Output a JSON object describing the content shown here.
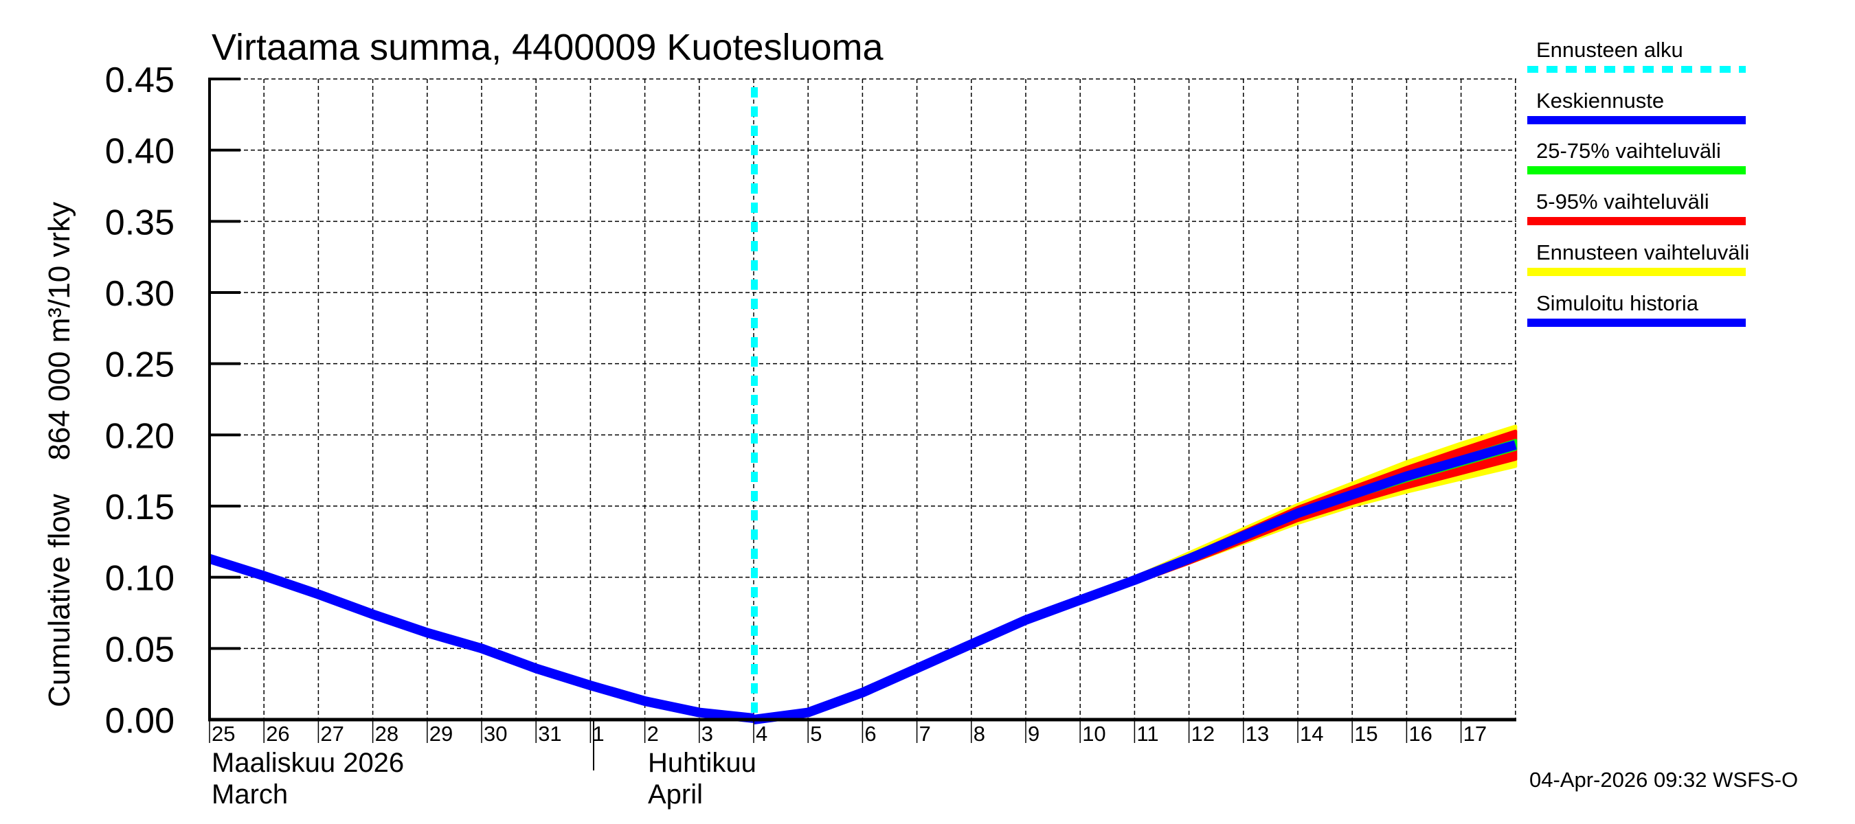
{
  "title": "Virtaama summa, 4400009 Kuotesluoma",
  "y_axis_label": "Cumulative flow    864 000 m³/10 vrky",
  "timestamp": "04-Apr-2026 09:32 WSFS-O",
  "month_labels": [
    {
      "line1": "Maaliskuu 2026",
      "line2": "March"
    },
    {
      "line1": "Huhtikuu",
      "line2": "April"
    }
  ],
  "legend": [
    {
      "label": "Ennusteen alku",
      "color": "#00ffff",
      "style": "dashed"
    },
    {
      "label": "Keskiennuste",
      "color": "#0000ff",
      "style": "solid"
    },
    {
      "label": "25-75% vaihteluväli",
      "color": "#00ff00",
      "style": "solid"
    },
    {
      "label": "5-95% vaihteluväli",
      "color": "#ff0000",
      "style": "solid"
    },
    {
      "label": "Ennusteen vaihteluväli",
      "color": "#ffff00",
      "style": "solid"
    },
    {
      "label": "Simuloitu historia",
      "color": "#0000ff",
      "style": "solid"
    }
  ],
  "chart_data": {
    "type": "line",
    "title": "Virtaama summa, 4400009 Kuotesluoma",
    "xlabel": "",
    "ylabel": "Cumulative flow    864 000 m³/10 vrky",
    "ylim": [
      0,
      0.45
    ],
    "y_ticks": [
      "0.00",
      "0.05",
      "0.10",
      "0.15",
      "0.20",
      "0.25",
      "0.30",
      "0.35",
      "0.40",
      "0.45"
    ],
    "x_tick_labels": [
      "25",
      "26",
      "27",
      "28",
      "29",
      "30",
      "31",
      "1",
      "2",
      "3",
      "4",
      "5",
      "6",
      "7",
      "8",
      "9",
      "10",
      "11",
      "12",
      "13",
      "14",
      "15",
      "16",
      "17"
    ],
    "x_range": [
      "2026-03-25",
      "2026-04-18"
    ],
    "grid": true,
    "legend_position": "right",
    "forecast_start": "2026-04-04",
    "x": [
      "03-25",
      "03-26",
      "03-27",
      "03-28",
      "03-29",
      "03-30",
      "03-31",
      "04-01",
      "04-02",
      "04-03",
      "04-04",
      "04-05",
      "04-06",
      "04-07",
      "04-08",
      "04-09",
      "04-10",
      "04-11",
      "04-12",
      "04-13",
      "04-14",
      "04-15",
      "04-16",
      "04-17",
      "04-18"
    ],
    "series": [
      {
        "name": "Simuloitu historia",
        "color": "#0000ff",
        "values": [
          0.113,
          0.101,
          0.088,
          0.074,
          0.061,
          0.05,
          0.036,
          0.024,
          0.013,
          0.005,
          0.001,
          null,
          null,
          null,
          null,
          null,
          null,
          null,
          null,
          null,
          null,
          null,
          null,
          null,
          null
        ]
      },
      {
        "name": "Keskiennuste",
        "color": "#0000ff",
        "values": [
          null,
          null,
          null,
          null,
          null,
          null,
          null,
          null,
          null,
          null,
          0.0,
          0.005,
          0.019,
          0.036,
          0.053,
          0.07,
          0.084,
          0.098,
          0.113,
          0.129,
          0.145,
          0.158,
          0.171,
          0.182,
          0.193
        ]
      },
      {
        "name": "25-75% vaihteluväli (upper)",
        "color": "#00ff00",
        "values": [
          null,
          null,
          null,
          null,
          null,
          null,
          null,
          null,
          null,
          null,
          0.0,
          0.005,
          0.019,
          0.036,
          0.053,
          0.07,
          0.084,
          0.098,
          0.114,
          0.13,
          0.146,
          0.16,
          0.173,
          0.184,
          0.196
        ]
      },
      {
        "name": "25-75% vaihteluväli (lower)",
        "color": "#00ff00",
        "values": [
          null,
          null,
          null,
          null,
          null,
          null,
          null,
          null,
          null,
          null,
          0.0,
          0.005,
          0.019,
          0.036,
          0.053,
          0.07,
          0.084,
          0.097,
          0.112,
          0.127,
          0.143,
          0.156,
          0.168,
          0.179,
          0.19
        ]
      },
      {
        "name": "5-95% vaihteluväli (upper)",
        "color": "#ff0000",
        "values": [
          null,
          null,
          null,
          null,
          null,
          null,
          null,
          null,
          null,
          null,
          0.0,
          0.005,
          0.019,
          0.036,
          0.053,
          0.07,
          0.085,
          0.099,
          0.115,
          0.132,
          0.149,
          0.163,
          0.177,
          0.19,
          0.2025
        ]
      },
      {
        "name": "5-95% vaihteluväli (lower)",
        "color": "#ff0000",
        "values": [
          null,
          null,
          null,
          null,
          null,
          null,
          null,
          null,
          null,
          null,
          0.0,
          0.005,
          0.019,
          0.036,
          0.053,
          0.069,
          0.083,
          0.096,
          0.11,
          0.125,
          0.14,
          0.152,
          0.163,
          0.173,
          0.183
        ]
      },
      {
        "name": "Ennusteen vaihteluväli (upper)",
        "color": "#ffff00",
        "values": [
          null,
          null,
          null,
          null,
          null,
          null,
          null,
          null,
          null,
          null,
          0.0,
          0.005,
          0.019,
          0.036,
          0.053,
          0.07,
          0.085,
          0.1,
          0.117,
          0.134,
          0.151,
          0.166,
          0.181,
          0.194,
          0.206
        ]
      },
      {
        "name": "Ennusteen vaihteluväli (lower)",
        "color": "#ffff00",
        "values": [
          null,
          null,
          null,
          null,
          null,
          null,
          null,
          null,
          null,
          null,
          0.0,
          0.005,
          0.019,
          0.036,
          0.053,
          0.069,
          0.083,
          0.096,
          0.11,
          0.124,
          0.138,
          0.15,
          0.16,
          0.169,
          0.178
        ]
      }
    ]
  }
}
